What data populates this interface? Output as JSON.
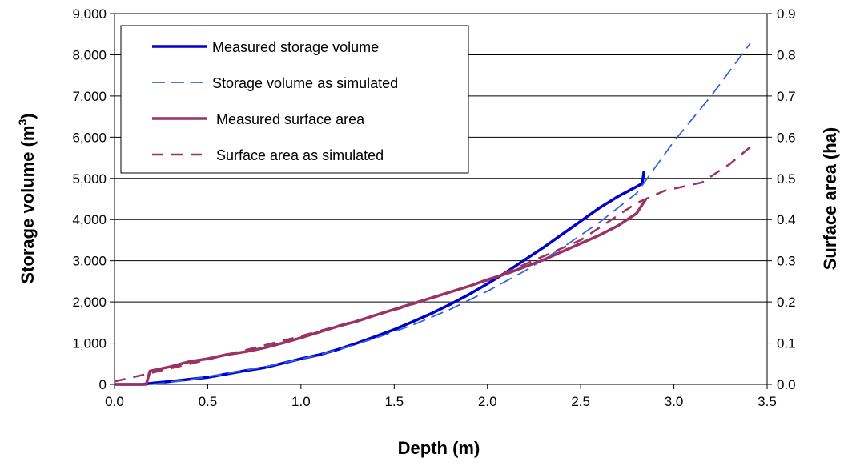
{
  "chart_data": {
    "type": "line",
    "xlabel": "Depth (m)",
    "ylabel": "Storage volume (m",
    "ylabel_sup": "3",
    "ylabel_end": ")",
    "y2label": "Surface area (ha)",
    "xlim": [
      0,
      3.5
    ],
    "ylim": [
      0,
      9000
    ],
    "y2lim": [
      0,
      0.9
    ],
    "xticks": [
      "0.0",
      "0.5",
      "1.0",
      "1.5",
      "2.0",
      "2.5",
      "3.0",
      "3.5"
    ],
    "yticks": [
      "0",
      "1,000",
      "2,000",
      "3,000",
      "4,000",
      "5,000",
      "6,000",
      "7,000",
      "8,000",
      "9,000"
    ],
    "y2ticks": [
      "0.0",
      "0.1",
      "0.2",
      "0.3",
      "0.4",
      "0.5",
      "0.6",
      "0.7",
      "0.8",
      "0.9"
    ],
    "grid": "horizontal",
    "legend_position": "top-left",
    "series": [
      {
        "name": "Measured storage volume",
        "axis": "left",
        "color": "#0000cc",
        "dash": "solid",
        "x": [
          0,
          0.15,
          0.2,
          0.3,
          0.4,
          0.5,
          0.6,
          0.7,
          0.8,
          0.9,
          1.0,
          1.1,
          1.2,
          1.3,
          1.4,
          1.5,
          1.6,
          1.7,
          1.8,
          1.9,
          2.0,
          2.1,
          2.2,
          2.3,
          2.4,
          2.5,
          2.6,
          2.7,
          2.8,
          2.83,
          2.84
        ],
        "y": [
          0,
          0,
          30,
          70,
          120,
          170,
          250,
          330,
          400,
          510,
          620,
          720,
          850,
          1000,
          1160,
          1330,
          1520,
          1720,
          1940,
          2180,
          2440,
          2720,
          3020,
          3320,
          3640,
          3960,
          4280,
          4560,
          4800,
          4880,
          5180
        ]
      },
      {
        "name": "Storage volume as simulated",
        "axis": "left",
        "color": "#3366dd",
        "dash": "long",
        "x": [
          0.2,
          0.4,
          0.6,
          0.8,
          1.0,
          1.2,
          1.4,
          1.6,
          1.8,
          2.0,
          2.2,
          2.4,
          2.6,
          2.8,
          3.0,
          3.2,
          3.41
        ],
        "y": [
          0,
          110,
          260,
          420,
          610,
          840,
          1120,
          1440,
          1820,
          2260,
          2750,
          3310,
          3930,
          4640,
          5900,
          7000,
          8280
        ]
      },
      {
        "name": "Measured surface area",
        "axis": "right",
        "color": "#993366",
        "dash": "solid",
        "x": [
          0,
          0.17,
          0.19,
          0.3,
          0.4,
          0.5,
          0.6,
          0.7,
          0.8,
          0.9,
          1.0,
          1.1,
          1.2,
          1.3,
          1.4,
          1.5,
          1.6,
          1.7,
          1.8,
          1.9,
          2.0,
          2.1,
          2.2,
          2.3,
          2.4,
          2.5,
          2.6,
          2.7,
          2.8,
          2.85
        ],
        "y": [
          0,
          0,
          0.032,
          0.043,
          0.055,
          0.062,
          0.072,
          0.079,
          0.088,
          0.1,
          0.113,
          0.127,
          0.141,
          0.153,
          0.168,
          0.182,
          0.196,
          0.21,
          0.224,
          0.238,
          0.254,
          0.268,
          0.285,
          0.302,
          0.322,
          0.342,
          0.362,
          0.385,
          0.415,
          0.45
        ]
      },
      {
        "name": "Surface area as simulated",
        "axis": "right",
        "color": "#993366",
        "dash": "long",
        "x": [
          0,
          0.2,
          0.5,
          1.0,
          1.5,
          2.0,
          2.5,
          2.8,
          2.95,
          3.15,
          3.3,
          3.42
        ],
        "y": [
          0.007,
          0.028,
          0.06,
          0.117,
          0.18,
          0.252,
          0.35,
          0.44,
          0.47,
          0.49,
          0.535,
          0.58
        ]
      }
    ]
  }
}
